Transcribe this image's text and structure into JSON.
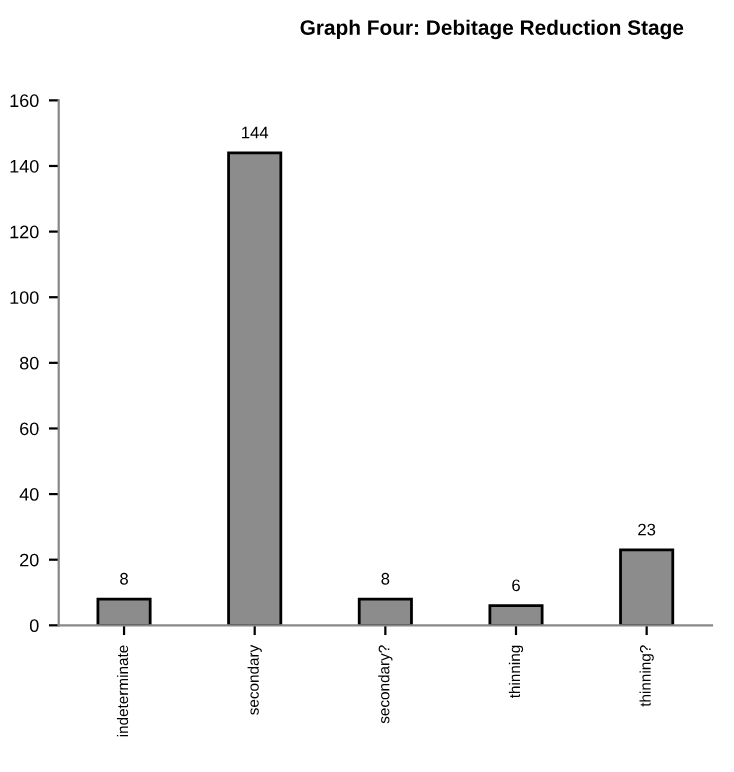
{
  "chart_data": {
    "type": "bar",
    "title": "Graph Four: Debitage Reduction Stage",
    "categories": [
      "indeterminate",
      "secondary",
      "secondary?",
      "thinning",
      "thinning?"
    ],
    "values": [
      8,
      144,
      8,
      6,
      23
    ],
    "color": "#8c8c8c",
    "ylim": [
      0,
      160
    ],
    "yticks": [
      0,
      20,
      40,
      60,
      80,
      100,
      120,
      140,
      160
    ],
    "grid": false,
    "data_labels": true
  }
}
